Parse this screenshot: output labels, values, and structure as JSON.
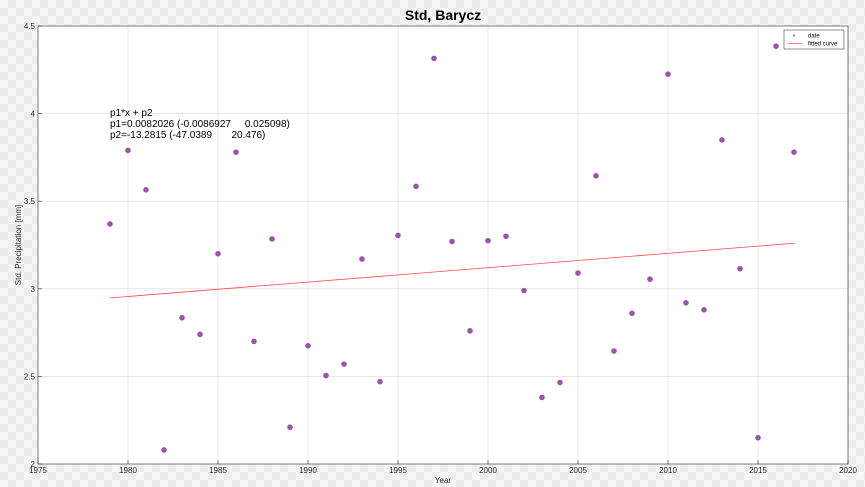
{
  "chart_data": {
    "type": "scatter",
    "title": "Std, Barycz",
    "xlabel": "Year",
    "ylabel": "Std. Precipitation [mm]",
    "xlim": [
      1975,
      2020
    ],
    "ylim": [
      2,
      4.5
    ],
    "xticks": [
      1975,
      1980,
      1985,
      1990,
      1995,
      2000,
      2005,
      2010,
      2015,
      2020
    ],
    "yticks": [
      2,
      2.5,
      3,
      3.5,
      4,
      4.5
    ],
    "grid": true,
    "legend_position": "top-right",
    "series": [
      {
        "name": "date",
        "kind": "scatter",
        "color": "#9b55a8",
        "x": [
          1979,
          1980,
          1981,
          1982,
          1983,
          1984,
          1985,
          1986,
          1987,
          1988,
          1989,
          1990,
          1991,
          1992,
          1993,
          1994,
          1995,
          1996,
          1997,
          1998,
          1999,
          2000,
          2001,
          2002,
          2003,
          2004,
          2005,
          2006,
          2007,
          2008,
          2009,
          2010,
          2011,
          2012,
          2013,
          2014,
          2015,
          2016,
          2017
        ],
        "y": [
          3.37,
          3.79,
          3.565,
          2.08,
          2.835,
          2.74,
          3.2,
          3.78,
          2.7,
          3.285,
          2.21,
          2.675,
          2.505,
          2.57,
          3.17,
          2.47,
          3.305,
          3.585,
          4.315,
          3.27,
          2.76,
          3.275,
          3.3,
          2.99,
          2.38,
          2.465,
          3.09,
          3.645,
          2.645,
          2.86,
          3.055,
          4.225,
          2.92,
          2.88,
          3.85,
          3.115,
          2.15,
          4.385,
          3.78
        ]
      },
      {
        "name": "fitted curve",
        "kind": "line",
        "color": "#ff4a4a",
        "x": [
          1979,
          2017
        ],
        "y": [
          2.948,
          3.26
        ]
      }
    ],
    "annotations": [
      "p1*x + p2",
      "p1=0.0082026 (-0.0086927     0.025098)",
      "p2=-13.2815 (-47.0389       20.476)"
    ]
  }
}
